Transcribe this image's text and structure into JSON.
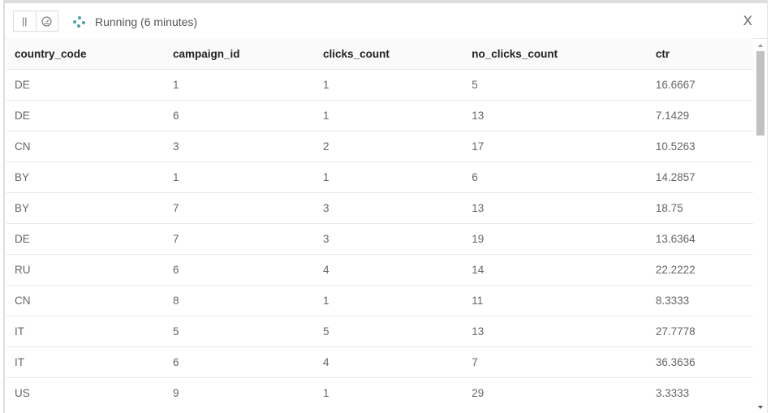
{
  "toolbar": {
    "pause_icon": "pause-icon",
    "dashboard_icon": "gauge-icon",
    "status": "Running (6 minutes)",
    "close": "X"
  },
  "table": {
    "columns": [
      "country_code",
      "campaign_id",
      "clicks_count",
      "no_clicks_count",
      "ctr"
    ],
    "rows": [
      [
        "DE",
        "1",
        "1",
        "5",
        "16.6667"
      ],
      [
        "DE",
        "6",
        "1",
        "13",
        "7.1429"
      ],
      [
        "CN",
        "3",
        "2",
        "17",
        "10.5263"
      ],
      [
        "BY",
        "1",
        "1",
        "6",
        "14.2857"
      ],
      [
        "BY",
        "7",
        "3",
        "13",
        "18.75"
      ],
      [
        "DE",
        "7",
        "3",
        "19",
        "13.6364"
      ],
      [
        "RU",
        "6",
        "4",
        "14",
        "22.2222"
      ],
      [
        "CN",
        "8",
        "1",
        "11",
        "8.3333"
      ],
      [
        "IT",
        "5",
        "5",
        "13",
        "27.7778"
      ],
      [
        "IT",
        "6",
        "4",
        "7",
        "36.3636"
      ],
      [
        "US",
        "9",
        "1",
        "29",
        "3.3333"
      ]
    ]
  }
}
